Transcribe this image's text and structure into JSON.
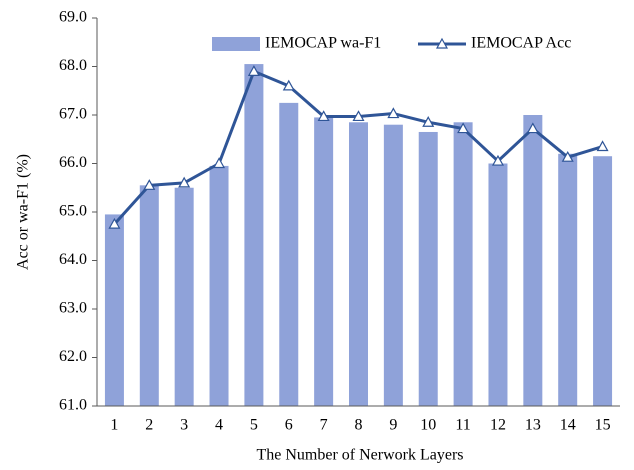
{
  "chart_data": {
    "type": "bar",
    "x_label": "The Number of Nerwork Layers",
    "y_label": "Acc or wa-F1 (%)",
    "categories": [
      "1",
      "2",
      "3",
      "4",
      "5",
      "6",
      "7",
      "8",
      "9",
      "10",
      "11",
      "12",
      "13",
      "14",
      "15"
    ],
    "series": [
      {
        "name": "IEMOCAP wa-F1",
        "type": "bar",
        "color": "#8fa2d9",
        "values": [
          64.95,
          65.55,
          65.5,
          65.95,
          68.05,
          67.25,
          66.95,
          66.85,
          66.8,
          66.65,
          66.85,
          66.0,
          67.0,
          66.2,
          66.15
        ]
      },
      {
        "name": "IEMOCAP Acc",
        "type": "line",
        "color": "#2f5597",
        "values": [
          64.75,
          65.55,
          65.6,
          66.0,
          67.9,
          67.6,
          66.97,
          66.97,
          67.03,
          66.85,
          66.72,
          66.05,
          66.72,
          66.13,
          66.35
        ]
      }
    ],
    "ylim": [
      61,
      69
    ],
    "yticks": [
      {
        "value": 61,
        "label": "61.0"
      },
      {
        "value": 62,
        "label": "62.0"
      },
      {
        "value": 63,
        "label": "63.0"
      },
      {
        "value": 64,
        "label": "64.0"
      },
      {
        "value": 65,
        "label": "65.0"
      },
      {
        "value": 66,
        "label": "66.0"
      },
      {
        "value": 67,
        "label": "67.0"
      },
      {
        "value": 68,
        "label": "68.0"
      },
      {
        "value": 69,
        "label": "69.0"
      }
    ],
    "legend": "upper right"
  }
}
